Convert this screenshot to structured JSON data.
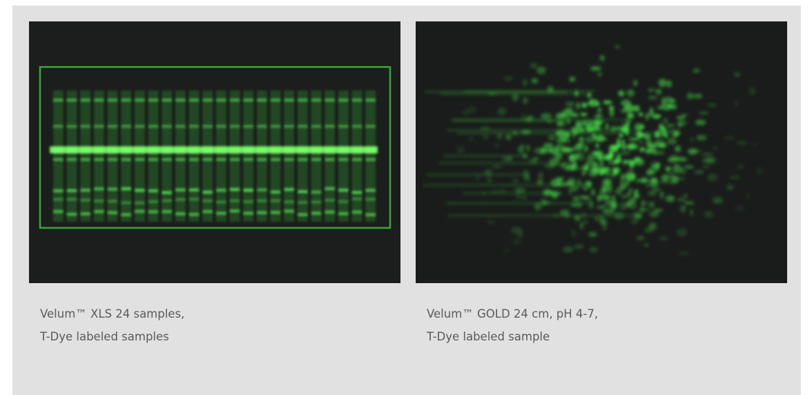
{
  "panels": [
    {
      "caption": [
        "Velum™ XLS 24 samples,",
        "T-Dye labeled samples"
      ]
    },
    {
      "caption": [
        "Velum™ GOLD 24 cm, pH 4-7,",
        "T-Dye labeled sample"
      ]
    }
  ]
}
